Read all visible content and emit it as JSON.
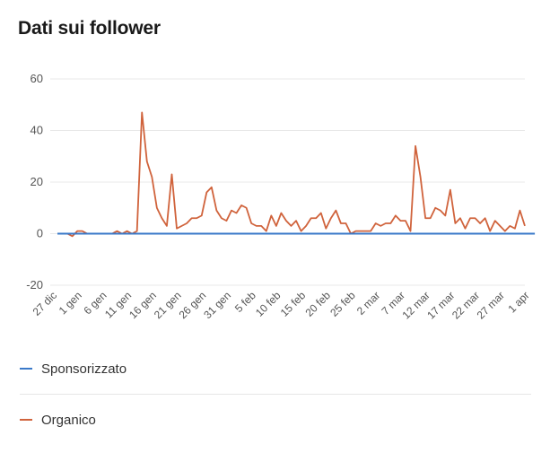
{
  "header": {
    "title": "Dati sui follower"
  },
  "colors": {
    "sponsored": "#3a79c9",
    "organic": "#d0633c",
    "grid": "#e8e8e8"
  },
  "chart_data": {
    "type": "line",
    "title": "Dati sui follower",
    "ylim": [
      -20,
      60
    ],
    "yticks": [
      60,
      40,
      20,
      0,
      -20
    ],
    "grid": true,
    "legend_position": "bottom",
    "start_date": "2024-12-27",
    "x_tick_labels": [
      "27 dic",
      "1 gen",
      "6 gen",
      "11 gen",
      "16 gen",
      "21 gen",
      "26 gen",
      "31 gen",
      "5 feb",
      "10 feb",
      "15 feb",
      "20 feb",
      "25 feb",
      "2 mar",
      "7 mar",
      "12 mar",
      "17 mar",
      "22 mar",
      "27 mar",
      "1 apr"
    ],
    "series": [
      {
        "name": "Sponsorizzato",
        "values": [
          0,
          0,
          0,
          0,
          0,
          0,
          0,
          0,
          0,
          0,
          0,
          0,
          0,
          0,
          0,
          0,
          0,
          0,
          0,
          0,
          0,
          0,
          0,
          0,
          0,
          0,
          0,
          0,
          0,
          0,
          0,
          0,
          0,
          0,
          0,
          0,
          0,
          0,
          0,
          0,
          0,
          0,
          0,
          0,
          0,
          0,
          0,
          0,
          0,
          0,
          0,
          0,
          0,
          0,
          0,
          0,
          0,
          0,
          0,
          0,
          0,
          0,
          0,
          0,
          0,
          0,
          0,
          0,
          0,
          0,
          0,
          0,
          0,
          0,
          0,
          0,
          0,
          0,
          0,
          0,
          0,
          0,
          0,
          0,
          0,
          0,
          0,
          0,
          0,
          0,
          0,
          0,
          0,
          0,
          0,
          0,
          0
        ]
      },
      {
        "name": "Organico",
        "values": [
          0,
          0,
          0,
          -1,
          1,
          1,
          0,
          0,
          0,
          0,
          0,
          0,
          1,
          0,
          1,
          0,
          1,
          47,
          28,
          22,
          10,
          6,
          3,
          23,
          2,
          3,
          4,
          6,
          6,
          7,
          16,
          18,
          9,
          6,
          5,
          9,
          8,
          11,
          10,
          4,
          3,
          3,
          1,
          7,
          3,
          8,
          5,
          3,
          5,
          1,
          3,
          6,
          6,
          8,
          2,
          6,
          9,
          4,
          4,
          0,
          1,
          1,
          1,
          1,
          4,
          3,
          4,
          4,
          7,
          5,
          5,
          1,
          34,
          22,
          6,
          6,
          10,
          9,
          7,
          17,
          4,
          6,
          2,
          6,
          6,
          4,
          6,
          1,
          5,
          3,
          1,
          3,
          2,
          9,
          3
        ]
      }
    ]
  }
}
